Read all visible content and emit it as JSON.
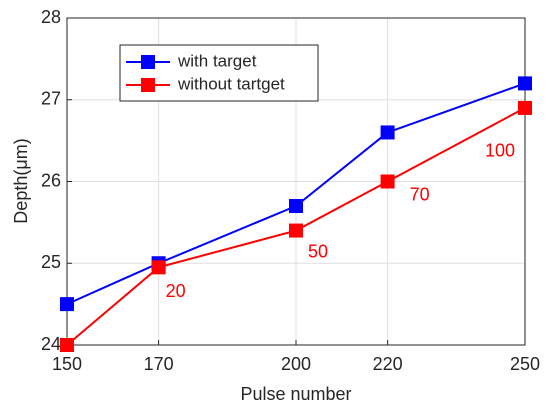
{
  "chart_data": {
    "type": "line",
    "x_label": "Pulse number",
    "y_label": "Depth(μm)",
    "x": [
      150,
      170,
      200,
      220,
      250
    ],
    "series": [
      {
        "name": "with target",
        "color": "#0000ff",
        "values": [
          24.5,
          25.0,
          25.7,
          26.6,
          27.2
        ]
      },
      {
        "name": "without tartget",
        "color": "#ff0000",
        "values": [
          24.0,
          24.95,
          25.4,
          26.0,
          26.9
        ]
      }
    ],
    "annotations": [
      "20",
      "50",
      "70",
      "100"
    ],
    "xlim": [
      150,
      250
    ],
    "xticks": [
      150,
      170,
      200,
      220,
      250
    ],
    "ylim": [
      24,
      28
    ],
    "yticks": [
      24,
      25,
      26,
      27,
      28
    ],
    "grid": true,
    "legend": "upper left"
  }
}
